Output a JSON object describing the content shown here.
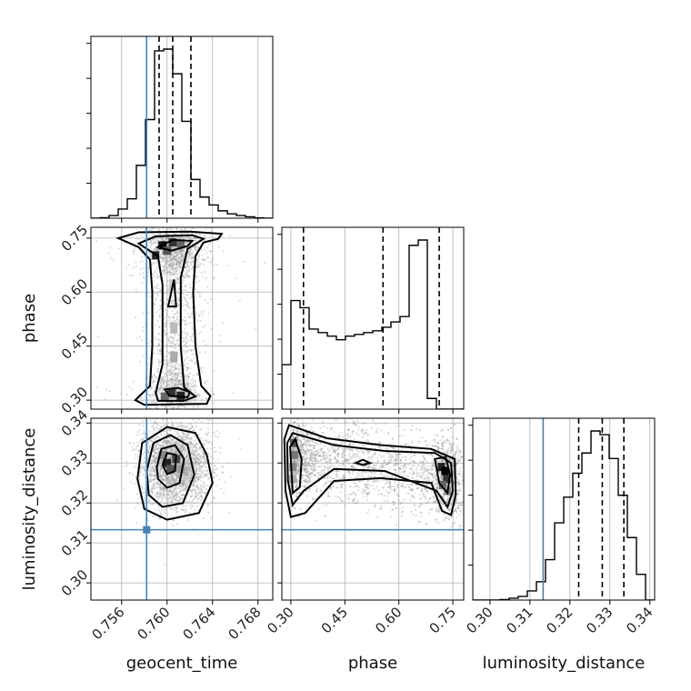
{
  "chart_data": {
    "type": "corner",
    "parameters": [
      "geocent_time",
      "phase",
      "luminosity_distance"
    ],
    "ranges": {
      "geocent_time": [
        0.7533,
        0.7693
      ],
      "phase": [
        0.275,
        0.78
      ],
      "luminosity_distance": [
        0.2957,
        0.3412
      ]
    },
    "ticks": {
      "geocent_time": [
        "0.756",
        "0.760",
        "0.764",
        "0.768"
      ],
      "phase": [
        "0.30",
        "0.45",
        "0.60",
        "0.75"
      ],
      "luminosity_distance": [
        "0.30",
        "0.31",
        "0.32",
        "0.33",
        "0.34"
      ]
    },
    "truths": {
      "geocent_time": 0.7582,
      "phase": null,
      "luminosity_distance": 0.3133
    },
    "quantiles": {
      "geocent_time": [
        0.7593,
        0.7605,
        0.7621
      ],
      "phase": [
        0.335,
        0.556,
        0.712
      ],
      "luminosity_distance": [
        0.3222,
        0.3281,
        0.3335
      ]
    },
    "histograms": {
      "geocent_time": {
        "edges_start": 0.7533,
        "bin_width": 0.0008,
        "counts": [
          0,
          0.3,
          1.5,
          5.2,
          11,
          30,
          56,
          95,
          96,
          82,
          55,
          22,
          12,
          7.5,
          4.2,
          2.5,
          1.5,
          0.8,
          0.2,
          0
        ]
      },
      "phase": {
        "edges_start": 0.275,
        "bin_width": 0.02525,
        "counts": [
          25,
          61,
          57,
          45,
          43,
          41,
          39,
          41,
          42,
          43,
          44,
          46,
          49,
          52,
          92,
          95,
          6,
          0,
          0,
          0
        ]
      },
      "luminosity_distance": {
        "edges_start": 0.2957,
        "bin_width": 0.002275,
        "counts": [
          0,
          0,
          0,
          0.3,
          1,
          2,
          5,
          10,
          22,
          42,
          56,
          69,
          80,
          92,
          90,
          77,
          57,
          34,
          14,
          0
        ]
      }
    }
  }
}
